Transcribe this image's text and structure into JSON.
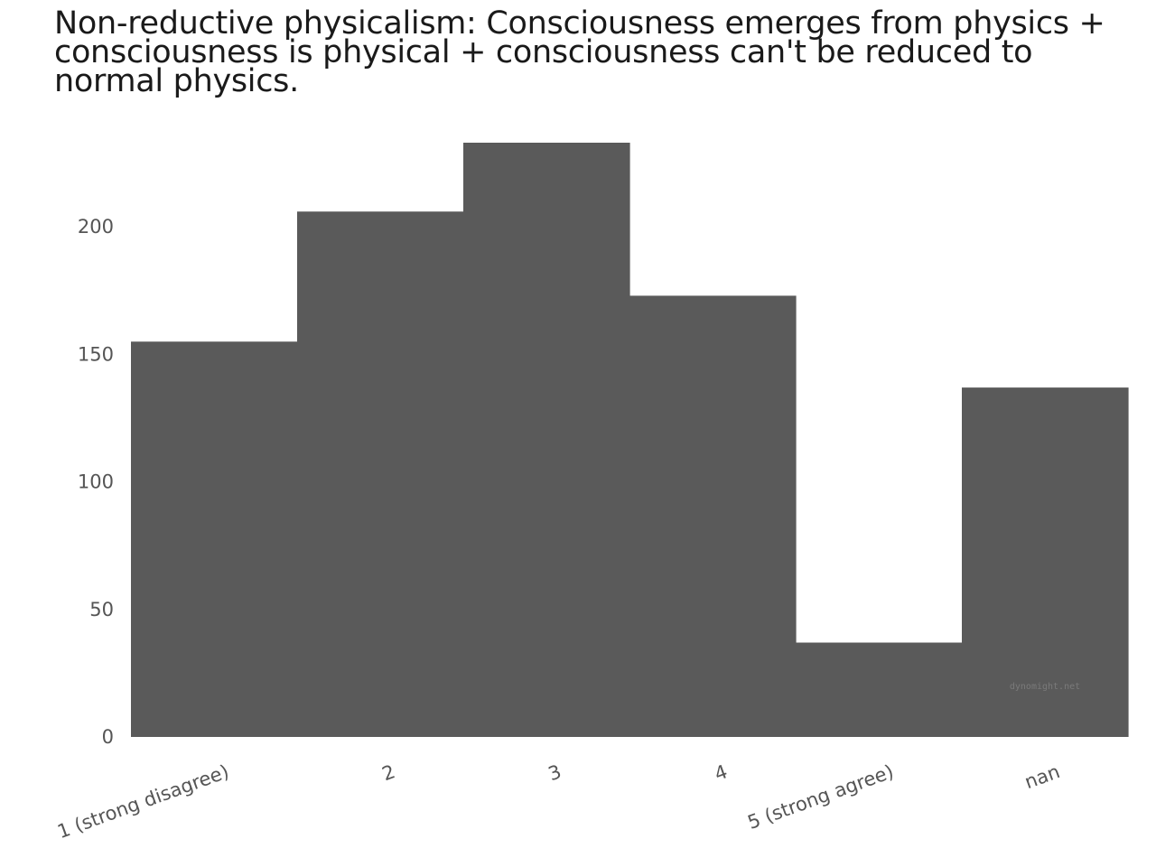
{
  "chart_data": {
    "type": "bar",
    "title": "Non-reductive physicalism: Consciousness emerges from physics + consciousness is physical + consciousness can't be reduced to normal physics.",
    "categories": [
      "1 (strong disagree)",
      "2",
      "3",
      "4",
      "5 (strong agree)",
      "nan"
    ],
    "values": [
      155,
      206,
      233,
      173,
      37,
      137
    ],
    "yticks": [
      0,
      50,
      100,
      150,
      200
    ],
    "ylim": [
      0,
      233
    ],
    "xlabel": "",
    "ylabel": "",
    "grid": false,
    "bar_color": "#5a5a5a",
    "watermark": "dynomight.net"
  }
}
